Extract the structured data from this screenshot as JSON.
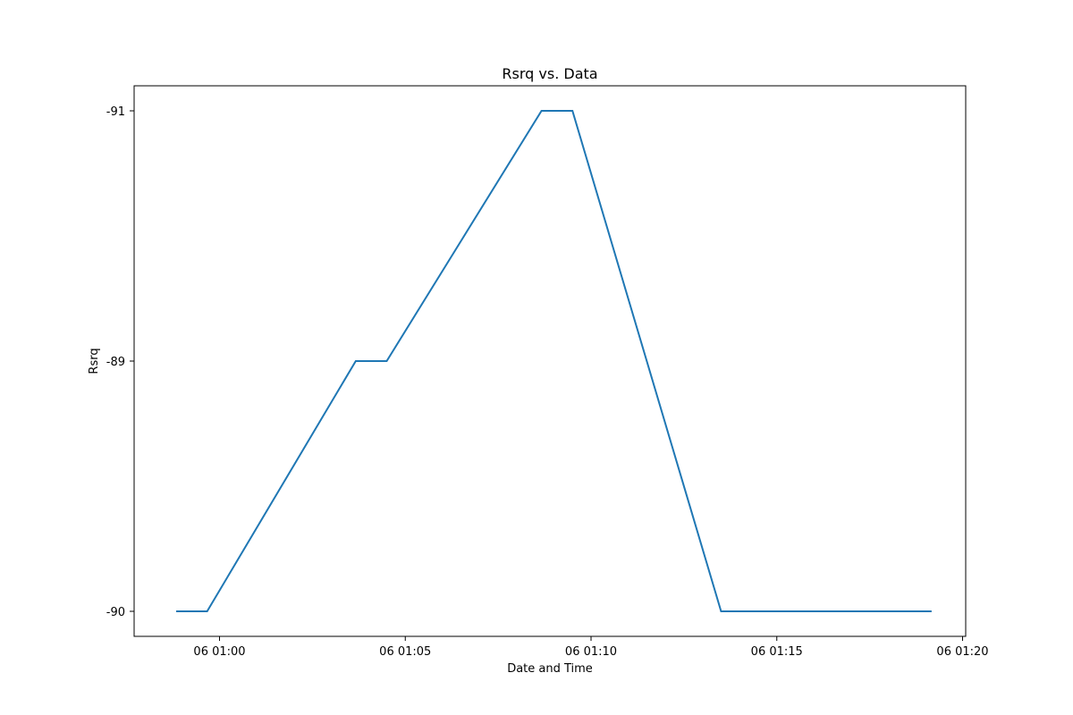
{
  "chart_data": {
    "type": "line",
    "title": "Rsrq vs. Data",
    "xlabel": "Date and Time",
    "ylabel": "Rsrq",
    "x_ticks": [
      "06 01:00",
      "06 01:05",
      "06 01:10",
      "06 01:15",
      "06 01:20"
    ],
    "y_ticks": [
      "-90",
      "-89",
      "-91"
    ],
    "series": [
      {
        "color": "#1f77b4",
        "points": [
          {
            "x": "06 00:58:50",
            "y": -90
          },
          {
            "x": "06 00:59:40",
            "y": -90
          },
          {
            "x": "06 01:03:40",
            "y": -89
          },
          {
            "x": "06 01:04:30",
            "y": -89
          },
          {
            "x": "06 01:08:40",
            "y": -91
          },
          {
            "x": "06 01:09:30",
            "y": -91
          },
          {
            "x": "06 01:13:30",
            "y": -90
          },
          {
            "x": "06 01:19:10",
            "y": -90
          }
        ]
      }
    ],
    "grid": false,
    "legend": "none"
  }
}
